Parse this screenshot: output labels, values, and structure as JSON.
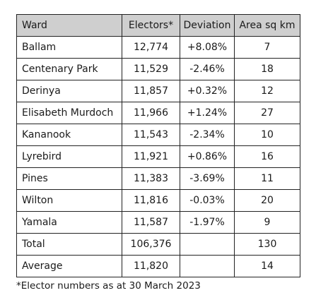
{
  "table": {
    "headers": {
      "ward": "Ward",
      "electors": "Electors*",
      "deviation": "Deviation",
      "area": "Area sq km"
    },
    "rows": [
      {
        "ward": "Ballam",
        "electors": "12,774",
        "deviation": "+8.08%",
        "area": "7"
      },
      {
        "ward": "Centenary Park",
        "electors": "11,529",
        "deviation": "-2.46%",
        "area": "18"
      },
      {
        "ward": "Derinya",
        "electors": "11,857",
        "deviation": "+0.32%",
        "area": "12"
      },
      {
        "ward": "Elisabeth Murdoch",
        "electors": "11,966",
        "deviation": "+1.24%",
        "area": "27"
      },
      {
        "ward": "Kananook",
        "electors": "11,543",
        "deviation": "-2.34%",
        "area": "10"
      },
      {
        "ward": "Lyrebird",
        "electors": "11,921",
        "deviation": "+0.86%",
        "area": "16"
      },
      {
        "ward": "Pines",
        "electors": "11,383",
        "deviation": "-3.69%",
        "area": "11"
      },
      {
        "ward": "Wilton",
        "electors": "11,816",
        "deviation": "-0.03%",
        "area": "20"
      },
      {
        "ward": "Yamala",
        "electors": "11,587",
        "deviation": "-1.97%",
        "area": "9"
      },
      {
        "ward": "Total",
        "electors": "106,376",
        "deviation": "",
        "area": "130"
      },
      {
        "ward": "Average",
        "electors": "11,820",
        "deviation": "",
        "area": "14"
      }
    ]
  },
  "footnote": "*Elector numbers as at 30 March 2023",
  "colors": {
    "header_background": "#cfcfcf",
    "border": "#222222",
    "text": "#1a1a1a"
  }
}
